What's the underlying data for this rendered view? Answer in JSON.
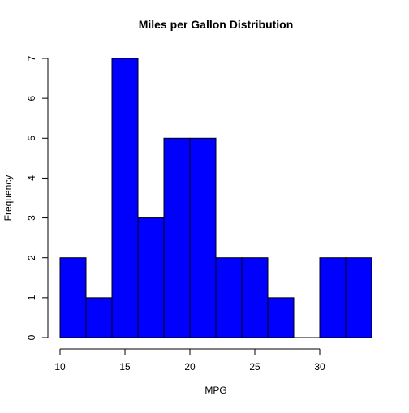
{
  "chart_data": {
    "type": "histogram",
    "title": "Miles per Gallon Distribution",
    "xlabel": "MPG",
    "ylabel": "Frequency",
    "bins": [
      {
        "start": 10,
        "end": 12,
        "count": 2
      },
      {
        "start": 12,
        "end": 14,
        "count": 1
      },
      {
        "start": 14,
        "end": 16,
        "count": 7
      },
      {
        "start": 16,
        "end": 18,
        "count": 3
      },
      {
        "start": 18,
        "end": 20,
        "count": 5
      },
      {
        "start": 20,
        "end": 22,
        "count": 5
      },
      {
        "start": 22,
        "end": 24,
        "count": 2
      },
      {
        "start": 24,
        "end": 26,
        "count": 2
      },
      {
        "start": 26,
        "end": 28,
        "count": 1
      },
      {
        "start": 28,
        "end": 30,
        "count": 0
      },
      {
        "start": 30,
        "end": 32,
        "count": 2
      },
      {
        "start": 32,
        "end": 34,
        "count": 2
      }
    ],
    "xlim": [
      10,
      34
    ],
    "ylim": [
      0,
      7
    ],
    "x_ticks": [
      "10",
      "15",
      "20",
      "25",
      "30"
    ],
    "y_ticks": [
      "0",
      "1",
      "2",
      "3",
      "4",
      "5",
      "6",
      "7"
    ],
    "bar_fill": "#0000ff",
    "bar_stroke": "#000000",
    "grid": false,
    "legend": "none"
  }
}
